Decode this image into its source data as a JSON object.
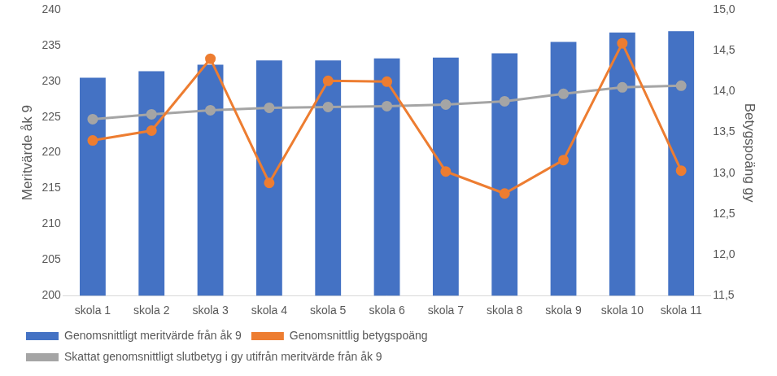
{
  "chart_data": {
    "type": "bar",
    "categories": [
      "skola 1",
      "skola 2",
      "skola 3",
      "skola 4",
      "skola 5",
      "skola 6",
      "skola 7",
      "skola 8",
      "skola 9",
      "skola 10",
      "skola 11"
    ],
    "series": [
      {
        "name": "Genomsnittligt meritvärde från åk 9",
        "type": "bar",
        "color": "#4472c4",
        "axis": "y",
        "values": [
          230.5,
          231.4,
          232.3,
          232.9,
          232.9,
          233.2,
          233.3,
          233.9,
          235.5,
          236.8,
          237.0
        ]
      },
      {
        "name": "Genomsnittlig betygspoäng",
        "type": "line",
        "color": "#ed7d31",
        "axis": "y2",
        "marker": "circle",
        "values": [
          13.4,
          13.52,
          14.4,
          12.88,
          14.13,
          14.12,
          13.02,
          12.75,
          13.16,
          14.59,
          13.03
        ]
      },
      {
        "name": "Skattat genomsnittligt slutbetyg i gy utifrån meritvärde från åk 9",
        "type": "line",
        "color": "#a5a5a5",
        "axis": "y2",
        "marker": "circle",
        "values": [
          13.66,
          13.72,
          13.77,
          13.8,
          13.81,
          13.82,
          13.84,
          13.88,
          13.97,
          14.05,
          14.07
        ]
      }
    ],
    "y_label": "Meritvärde åk 9",
    "y2_label": "Betygspoäng gy",
    "ylim": [
      200,
      240
    ],
    "yticks": [
      200,
      205,
      210,
      215,
      220,
      225,
      230,
      235,
      240
    ],
    "y2lim": [
      11.5,
      15.0
    ],
    "y2ticks": [
      {
        "value": 11.5,
        "label": "11,5"
      },
      {
        "value": 12.0,
        "label": "12,0"
      },
      {
        "value": 12.5,
        "label": "12,5"
      },
      {
        "value": 13.0,
        "label": "13,0"
      },
      {
        "value": 13.5,
        "label": "13,5"
      },
      {
        "value": 14.0,
        "label": "14,0"
      },
      {
        "value": 14.5,
        "label": "14,5"
      },
      {
        "value": 15.0,
        "label": "15,0"
      }
    ],
    "grid": false,
    "legend": "bottom"
  }
}
